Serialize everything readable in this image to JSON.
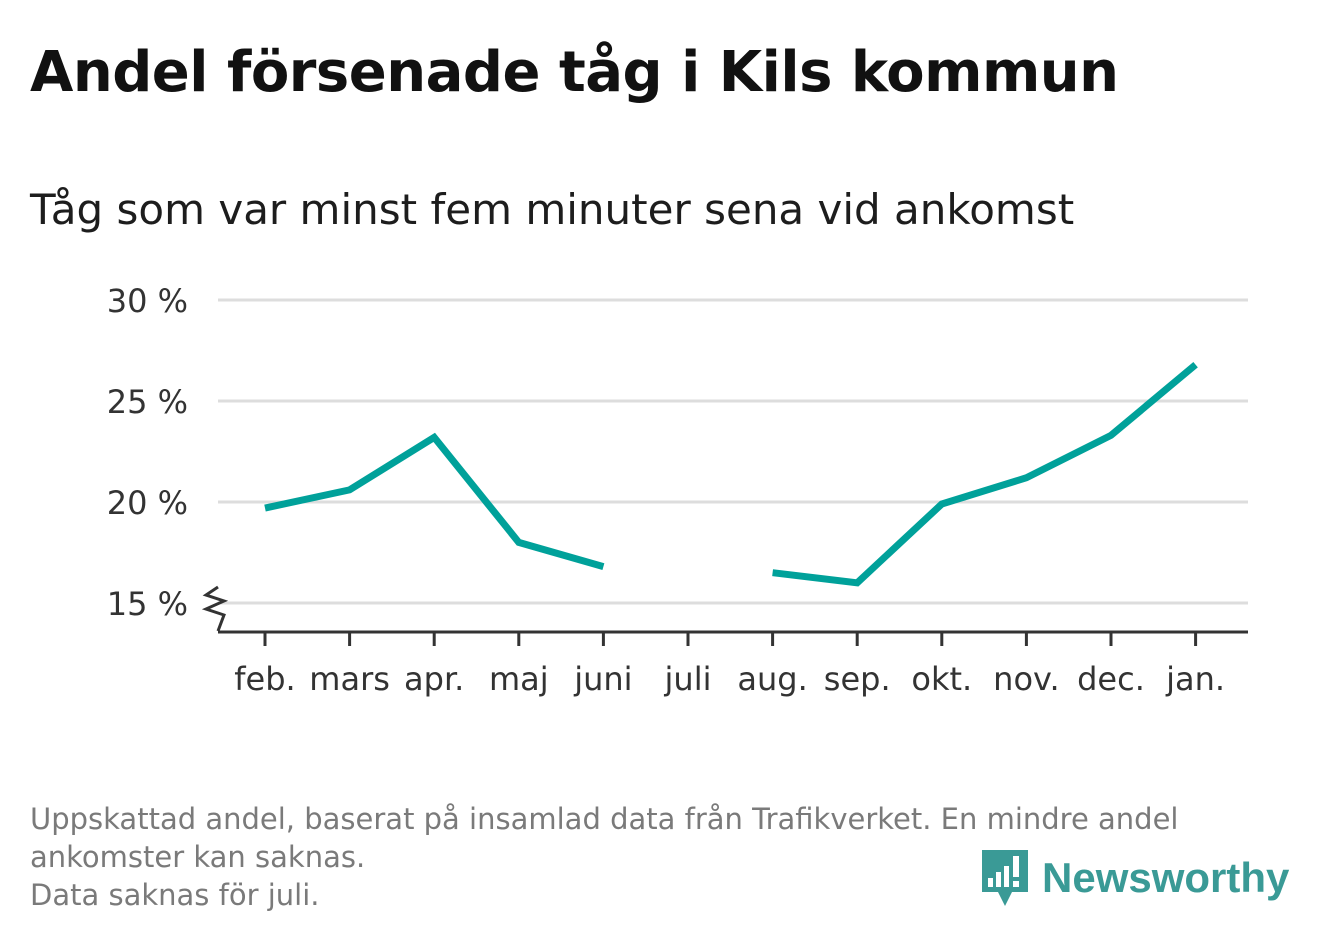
{
  "header": {
    "title": "Andel försenade tåg i Kils kommun",
    "subtitle": "Tåg som var minst fem minuter sena vid ankomst"
  },
  "chart_data": {
    "type": "line",
    "categories": [
      "feb.",
      "mars",
      "apr.",
      "maj",
      "juni",
      "juli",
      "aug.",
      "sep.",
      "okt.",
      "nov.",
      "dec.",
      "jan."
    ],
    "series": [
      {
        "values": [
          19.7,
          20.6,
          23.2,
          18.0,
          16.8,
          null,
          16.5,
          16.0,
          19.9,
          21.2,
          23.3,
          26.8
        ]
      }
    ],
    "ylim": [
      15,
      30
    ],
    "yticks": [
      15,
      20,
      25,
      30
    ],
    "ytick_labels": [
      "15 %",
      "20 %",
      "25 %",
      "30 %"
    ],
    "xlabel": "",
    "ylabel": "",
    "grid": true,
    "axis_break": true,
    "line_color": "#00a19a",
    "grid_color": "#dddddd",
    "axis_color": "#333333"
  },
  "footnote": {
    "line1": "Uppskattad andel, baserat på insamlad data från Trafikverket. En mindre andel",
    "line2": "ankomster kan saknas.",
    "line3": "Data saknas för juli."
  },
  "brand": {
    "name": "Newsworthy",
    "icon": "newsworthy-logo-icon",
    "color": "#3a9a96"
  }
}
